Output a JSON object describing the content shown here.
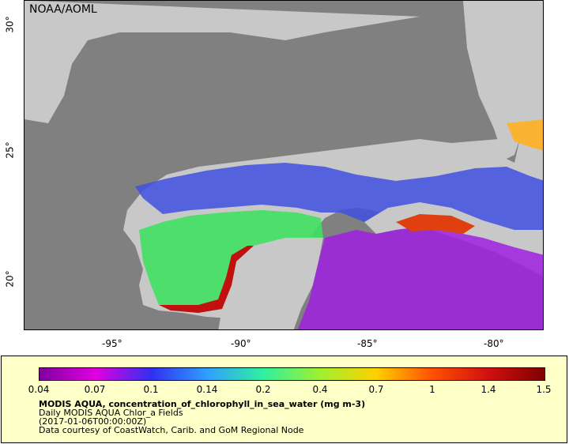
{
  "map": {
    "organization": "NOAA/AOML",
    "lon_ticks": [
      "-95°",
      "-90°",
      "-85°",
      "-80°"
    ],
    "lat_ticks": [
      "30°",
      "25°",
      "20°"
    ]
  },
  "legend": {
    "colorbar_ticks": [
      "0.04",
      "0.07",
      "0.1",
      "0.14",
      "0.2",
      "0.4",
      "0.7",
      "1",
      "1.4",
      "1.5"
    ],
    "title": "MODIS AQUA, concentration_of_chlorophyll_in_sea_water (mg m-3)",
    "line1": "Daily MODIS AQUA Chlor_a Fields",
    "line2": "(2017-01-06T00:00:00Z)",
    "line3": "Data courtesy of CoastWatch, Carib. and GoM Regional Node"
  },
  "colors": {
    "land": "#c8c8c8",
    "no_data": "#808080",
    "colorbar_stops": [
      "#8000a0",
      "#e000e0",
      "#3030f0",
      "#30a0ff",
      "#30f0a0",
      "#a0f030",
      "#ffd000",
      "#ff5000",
      "#d01010",
      "#800000"
    ]
  }
}
